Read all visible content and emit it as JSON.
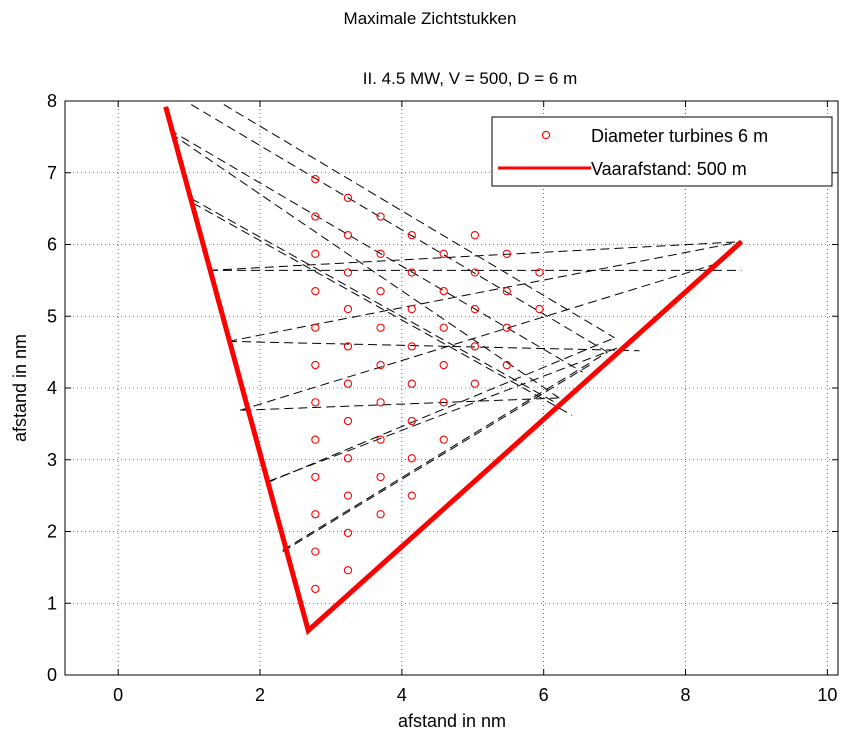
{
  "chart_data": {
    "type": "scatter",
    "title": "Maximale Zichtstukken",
    "subtitle": "II.  4.5 MW, V = 500, D = 6 m",
    "xlabel": "afstand in nm",
    "ylabel": "afstand in nm",
    "xlim": [
      -0.75,
      10.15
    ],
    "ylim": [
      0,
      8
    ],
    "xticks": [
      0,
      2,
      4,
      6,
      8,
      10
    ],
    "yticks": [
      0,
      1,
      2,
      3,
      4,
      5,
      6,
      7,
      8
    ],
    "grid": true,
    "legend_position": "top-right",
    "colors": {
      "turbine": "#ff0000",
      "route": "#ff0000",
      "sightline": "#000000"
    },
    "series": [
      {
        "name": "Diameter turbines 6 m",
        "kind": "scatter",
        "marker": "circle",
        "points": [
          [
            2.78,
            6.91
          ],
          [
            3.24,
            6.65
          ],
          [
            2.78,
            6.39
          ],
          [
            3.7,
            6.39
          ],
          [
            3.24,
            6.13
          ],
          [
            4.14,
            6.13
          ],
          [
            5.03,
            6.13
          ],
          [
            2.78,
            5.87
          ],
          [
            3.7,
            5.87
          ],
          [
            4.59,
            5.87
          ],
          [
            5.48,
            5.87
          ],
          [
            3.24,
            5.61
          ],
          [
            4.14,
            5.61
          ],
          [
            5.03,
            5.61
          ],
          [
            5.94,
            5.61
          ],
          [
            2.78,
            5.35
          ],
          [
            3.7,
            5.35
          ],
          [
            4.59,
            5.35
          ],
          [
            5.48,
            5.35
          ],
          [
            3.24,
            5.1
          ],
          [
            4.14,
            5.1
          ],
          [
            5.03,
            5.1
          ],
          [
            5.94,
            5.1
          ],
          [
            2.78,
            4.84
          ],
          [
            3.7,
            4.84
          ],
          [
            4.59,
            4.84
          ],
          [
            5.48,
            4.84
          ],
          [
            3.24,
            4.58
          ],
          [
            4.14,
            4.58
          ],
          [
            5.03,
            4.58
          ],
          [
            2.78,
            4.32
          ],
          [
            3.7,
            4.32
          ],
          [
            4.59,
            4.32
          ],
          [
            5.48,
            4.32
          ],
          [
            3.24,
            4.06
          ],
          [
            4.14,
            4.06
          ],
          [
            5.03,
            4.06
          ],
          [
            2.78,
            3.8
          ],
          [
            3.7,
            3.8
          ],
          [
            4.59,
            3.8
          ],
          [
            3.24,
            3.54
          ],
          [
            4.14,
            3.54
          ],
          [
            2.78,
            3.28
          ],
          [
            3.7,
            3.28
          ],
          [
            4.59,
            3.28
          ],
          [
            3.24,
            3.02
          ],
          [
            4.14,
            3.02
          ],
          [
            2.78,
            2.76
          ],
          [
            3.7,
            2.76
          ],
          [
            3.24,
            2.5
          ],
          [
            4.14,
            2.5
          ],
          [
            2.78,
            2.24
          ],
          [
            3.7,
            2.24
          ],
          [
            3.24,
            1.98
          ],
          [
            2.78,
            1.72
          ],
          [
            3.24,
            1.46
          ],
          [
            2.78,
            1.2
          ]
        ]
      },
      {
        "name": "Vaarafstand: 500 m",
        "kind": "line",
        "points": [
          [
            0.67,
            7.92
          ],
          [
            2.68,
            0.62
          ],
          [
            8.79,
            6.04
          ]
        ]
      }
    ],
    "sightlines": [
      [
        [
          1.49,
          7.95
        ],
        [
          7.0,
          4.7
        ]
      ],
      [
        [
          1.03,
          7.95
        ],
        [
          6.9,
          4.5
        ]
      ],
      [
        [
          0.72,
          7.6
        ],
        [
          6.55,
          4.22
        ]
      ],
      [
        [
          0.74,
          7.55
        ],
        [
          6.22,
          3.86
        ]
      ],
      [
        [
          1.03,
          6.64
        ],
        [
          6.25,
          3.75
        ]
      ],
      [
        [
          1.05,
          6.58
        ],
        [
          6.4,
          3.62
        ]
      ],
      [
        [
          1.28,
          5.64
        ],
        [
          8.79,
          6.04
        ]
      ],
      [
        [
          1.28,
          5.64
        ],
        [
          8.79,
          5.64
        ]
      ],
      [
        [
          1.55,
          4.65
        ],
        [
          8.79,
          6.04
        ]
      ],
      [
        [
          1.55,
          4.65
        ],
        [
          7.35,
          4.52
        ]
      ],
      [
        [
          1.72,
          3.69
        ],
        [
          8.4,
          5.72
        ]
      ],
      [
        [
          1.75,
          3.69
        ],
        [
          6.2,
          3.86
        ]
      ],
      [
        [
          2.1,
          2.68
        ],
        [
          7.0,
          4.7
        ]
      ],
      [
        [
          2.12,
          2.7
        ],
        [
          7.15,
          4.6
        ]
      ],
      [
        [
          2.32,
          1.74
        ],
        [
          6.9,
          4.5
        ]
      ],
      [
        [
          2.32,
          1.72
        ],
        [
          6.7,
          4.35
        ]
      ]
    ],
    "legend": [
      "Diameter turbines 6 m",
      "Vaarafstand: 500 m"
    ]
  }
}
